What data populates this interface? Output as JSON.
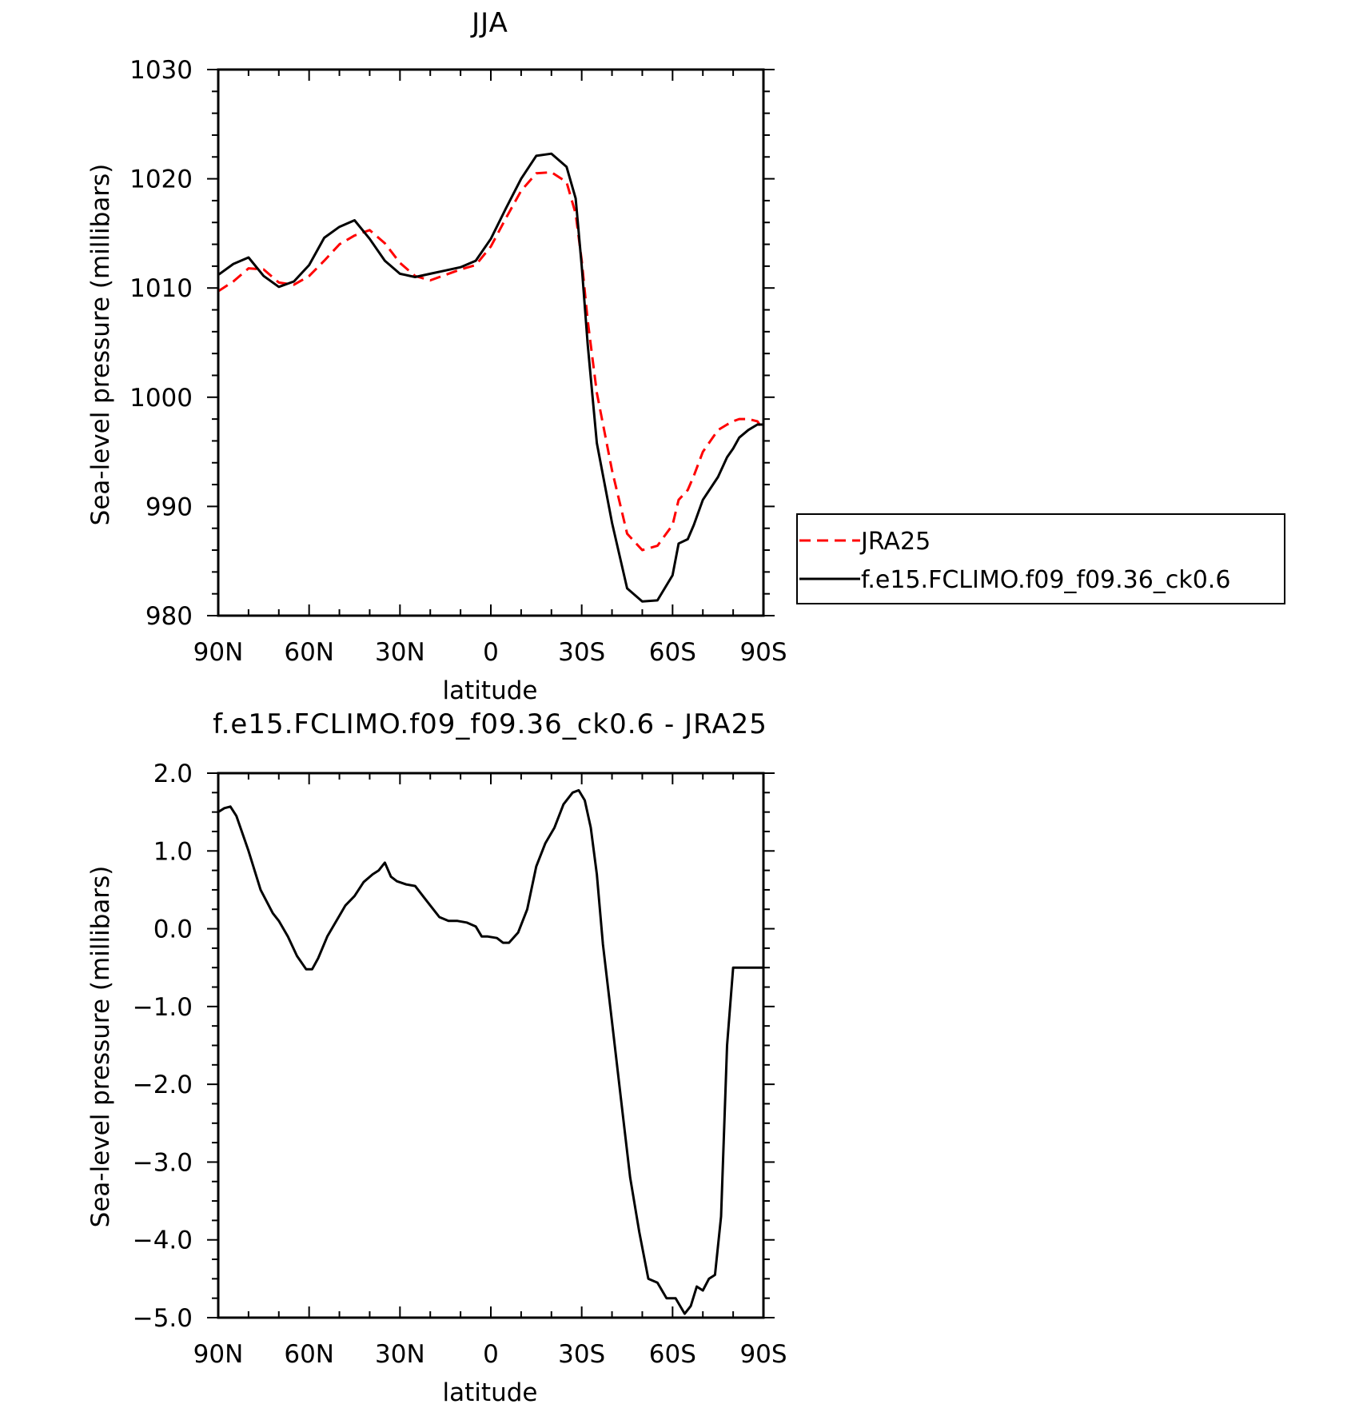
{
  "chart_data": [
    {
      "type": "line",
      "title": "JJA",
      "xlabel": "latitude",
      "ylabel": "Sea-level pressure (millibars)",
      "xlim": [
        90,
        -90
      ],
      "ylim": [
        980,
        1030
      ],
      "xticks": [
        {
          "value": 90,
          "label": "90N"
        },
        {
          "value": 60,
          "label": "60N"
        },
        {
          "value": 30,
          "label": "30N"
        },
        {
          "value": 0,
          "label": "0"
        },
        {
          "value": -30,
          "label": "30S"
        },
        {
          "value": -60,
          "label": "60S"
        },
        {
          "value": -90,
          "label": "90S"
        }
      ],
      "yticks": [
        {
          "value": 1030,
          "label": "1030"
        },
        {
          "value": 1020,
          "label": "1020"
        },
        {
          "value": 1010,
          "label": "1010"
        },
        {
          "value": 1000,
          "label": "1000"
        },
        {
          "value": 990,
          "label": "990"
        },
        {
          "value": 980,
          "label": "980"
        }
      ],
      "grid": false,
      "legend": "right",
      "x": [
        90,
        85,
        80,
        75,
        70,
        65,
        60,
        55,
        50,
        45,
        40,
        35,
        30,
        25,
        20,
        15,
        10,
        5,
        0,
        -5,
        -10,
        -15,
        -20,
        -25,
        -28,
        -30,
        -32,
        -35,
        -40,
        -45,
        -50,
        -55,
        -60,
        -62,
        -65,
        -67,
        -70,
        -75,
        -78,
        -80,
        -82,
        -85,
        -88,
        -90
      ],
      "series": [
        {
          "name": "JRA25",
          "color": "#ff0000",
          "dash": "dashed",
          "values": [
            1009.7,
            1010.6,
            1011.8,
            1011.7,
            1010.5,
            1010.3,
            1011.1,
            1012.5,
            1014.0,
            1014.8,
            1015.3,
            1014.1,
            1012.3,
            1011.1,
            1010.7,
            1011.2,
            1011.7,
            1012.1,
            1013.8,
            1016.4,
            1018.9,
            1020.5,
            1020.6,
            1019.7,
            1016.8,
            1012.5,
            1007.0,
            1000.4,
            993.3,
            987.5,
            986.0,
            986.4,
            988.3,
            990.6,
            991.5,
            992.8,
            995.0,
            997.0,
            997.5,
            997.8,
            998.0,
            998.0,
            997.8,
            997.0
          ]
        },
        {
          "name": "f.e15.FCLIMO.f09_f09.36_ck0.6",
          "color": "#000000",
          "dash": "solid",
          "values": [
            1011.2,
            1012.2,
            1012.8,
            1011.1,
            1010.1,
            1010.6,
            1012.1,
            1014.6,
            1015.6,
            1016.2,
            1014.5,
            1012.5,
            1011.3,
            1011.0,
            1011.3,
            1011.6,
            1011.9,
            1012.5,
            1014.5,
            1017.3,
            1020.0,
            1022.1,
            1022.3,
            1021.1,
            1018.2,
            1012.0,
            1004.8,
            995.8,
            988.5,
            982.5,
            981.3,
            981.4,
            983.7,
            986.6,
            987.0,
            988.3,
            990.6,
            992.7,
            994.5,
            995.3,
            996.3,
            997.0,
            997.5,
            997.5
          ]
        }
      ]
    },
    {
      "type": "line",
      "title": "f.e15.FCLIMO.f09_f09.36_ck0.6 - JRA25",
      "xlabel": "latitude",
      "ylabel": "Sea-level pressure (millibars)",
      "xlim": [
        90,
        -90
      ],
      "ylim": [
        -5.0,
        2.0
      ],
      "xticks": [
        {
          "value": 90,
          "label": "90N"
        },
        {
          "value": 60,
          "label": "60N"
        },
        {
          "value": 30,
          "label": "30N"
        },
        {
          "value": 0,
          "label": "0"
        },
        {
          "value": -30,
          "label": "30S"
        },
        {
          "value": -60,
          "label": "60S"
        },
        {
          "value": -90,
          "label": "90S"
        }
      ],
      "yticks": [
        {
          "value": 2.0,
          "label": "2.0"
        },
        {
          "value": 1.0,
          "label": "1.0"
        },
        {
          "value": 0.0,
          "label": "0.0"
        },
        {
          "value": -1.0,
          "label": "−1.0"
        },
        {
          "value": -2.0,
          "label": "−2.0"
        },
        {
          "value": -3.0,
          "label": "−3.0"
        },
        {
          "value": -4.0,
          "label": "−4.0"
        },
        {
          "value": -5.0,
          "label": "−5.0"
        }
      ],
      "grid": false,
      "x": [
        90,
        88,
        86,
        84,
        80,
        76,
        72,
        70,
        67,
        64,
        61,
        59,
        57,
        54,
        51,
        48,
        45,
        42,
        39,
        37,
        35,
        33,
        31,
        28,
        25,
        22,
        20,
        17,
        14,
        11,
        8,
        5,
        3,
        1,
        -2,
        -4,
        -6,
        -9,
        -12,
        -15,
        -18,
        -21,
        -24,
        -27,
        -29,
        -31,
        -33,
        -35,
        -37,
        -40,
        -43,
        -46,
        -49,
        -52,
        -55,
        -58,
        -61,
        -64,
        -66,
        -68,
        -70,
        -72,
        -74,
        -76,
        -78,
        -80,
        -82,
        -84,
        -86,
        -88,
        -90
      ],
      "series": [
        {
          "name": "",
          "color": "#000000",
          "dash": "solid",
          "values": [
            1.5,
            1.55,
            1.57,
            1.45,
            1.0,
            0.5,
            0.2,
            0.1,
            -0.1,
            -0.35,
            -0.52,
            -0.52,
            -0.38,
            -0.1,
            0.1,
            0.3,
            0.42,
            0.6,
            0.7,
            0.75,
            0.85,
            0.67,
            0.61,
            0.57,
            0.55,
            0.4,
            0.3,
            0.15,
            0.1,
            0.1,
            0.08,
            0.03,
            -0.1,
            -0.1,
            -0.12,
            -0.18,
            -0.18,
            -0.05,
            0.25,
            0.8,
            1.1,
            1.3,
            1.6,
            1.75,
            1.78,
            1.65,
            1.3,
            0.7,
            -0.2,
            -1.2,
            -2.2,
            -3.2,
            -3.9,
            -4.5,
            -4.55,
            -4.75,
            -4.75,
            -4.95,
            -4.85,
            -4.6,
            -4.65,
            -4.5,
            -4.45,
            -3.7,
            -1.5,
            -0.5,
            -0.5,
            -0.5,
            -0.5,
            -0.5,
            -0.5
          ]
        }
      ]
    }
  ]
}
